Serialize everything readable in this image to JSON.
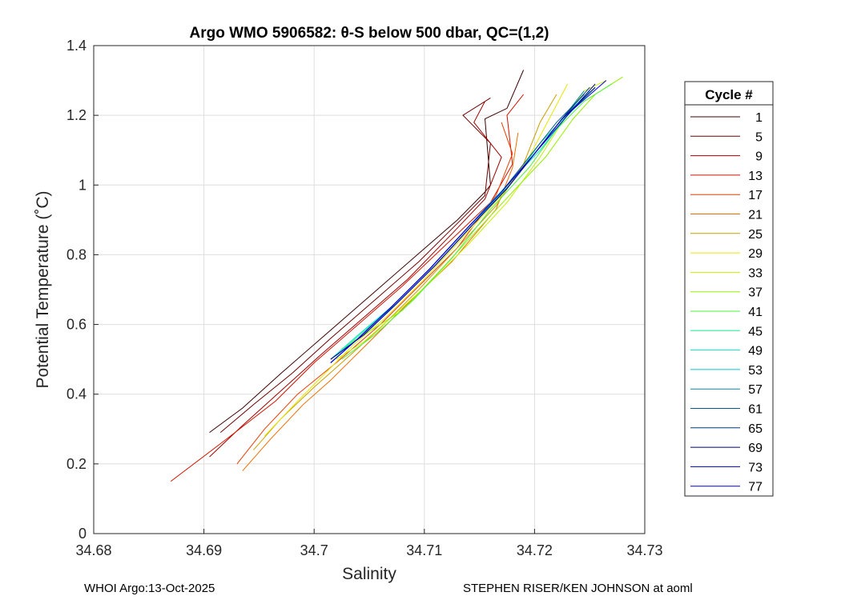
{
  "chart_data": {
    "type": "line",
    "title": "Argo WMO 5906582: θ-S below 500 dbar,  QC=(1,2)",
    "xlabel": "Salinity",
    "ylabel": "Potential Temperature (˚C)",
    "xlim": [
      34.68,
      34.73
    ],
    "ylim": [
      0,
      1.4
    ],
    "xticks": [
      34.68,
      34.69,
      34.7,
      34.71,
      34.72,
      34.73
    ],
    "xtick_labels": [
      "34.68",
      "34.69",
      "34.7",
      "34.71",
      "34.72",
      "34.73"
    ],
    "yticks": [
      0,
      0.2,
      0.4,
      0.6,
      0.8,
      1,
      1.2,
      1.4
    ],
    "ytick_labels": [
      "0",
      "0.2",
      "0.4",
      "0.6",
      "0.8",
      "1",
      "1.2",
      "1.4"
    ],
    "grid": true,
    "legend": {
      "title": "Cycle #",
      "position": "right",
      "entries": [
        {
          "label": "1",
          "color": "#3c0000"
        },
        {
          "label": "5",
          "color": "#6e0000"
        },
        {
          "label": "9",
          "color": "#a00000"
        },
        {
          "label": "13",
          "color": "#d21400"
        },
        {
          "label": "17",
          "color": "#e83c00"
        },
        {
          "label": "21",
          "color": "#f06e00"
        },
        {
          "label": "25",
          "color": "#c8a000"
        },
        {
          "label": "29",
          "color": "#e6e600"
        },
        {
          "label": "33",
          "color": "#c8f000"
        },
        {
          "label": "37",
          "color": "#96f000"
        },
        {
          "label": "41",
          "color": "#50f03c"
        },
        {
          "label": "45",
          "color": "#1ef08c"
        },
        {
          "label": "49",
          "color": "#00e6c8"
        },
        {
          "label": "53",
          "color": "#00c8dc"
        },
        {
          "label": "57",
          "color": "#008cb4"
        },
        {
          "label": "61",
          "color": "#005a96"
        },
        {
          "label": "65",
          "color": "#003c78"
        },
        {
          "label": "69",
          "color": "#00005a"
        },
        {
          "label": "73",
          "color": "#0000a0"
        },
        {
          "label": "77",
          "color": "#0000dc"
        }
      ]
    },
    "series": [
      {
        "name": "1",
        "color": "#3c0000",
        "points": [
          [
            34.6905,
            0.29
          ],
          [
            34.6935,
            0.36
          ],
          [
            34.697,
            0.46
          ],
          [
            34.701,
            0.57
          ],
          [
            34.705,
            0.68
          ],
          [
            34.709,
            0.79
          ],
          [
            34.713,
            0.9
          ],
          [
            34.7155,
            0.98
          ],
          [
            34.716,
            1.0
          ],
          [
            34.7155,
            1.19
          ],
          [
            34.7175,
            1.22
          ],
          [
            34.719,
            1.33
          ]
        ]
      },
      {
        "name": "5",
        "color": "#6e0000",
        "points": [
          [
            34.6915,
            0.29
          ],
          [
            34.6945,
            0.37
          ],
          [
            34.698,
            0.46
          ],
          [
            34.7015,
            0.56
          ],
          [
            34.7055,
            0.67
          ],
          [
            34.7095,
            0.78
          ],
          [
            34.713,
            0.89
          ],
          [
            34.7155,
            0.97
          ],
          [
            34.716,
            1.12
          ],
          [
            34.7135,
            1.2
          ],
          [
            34.716,
            1.25
          ]
        ]
      },
      {
        "name": "9",
        "color": "#a00000",
        "points": [
          [
            34.6905,
            0.22
          ],
          [
            34.6935,
            0.31
          ],
          [
            34.697,
            0.41
          ],
          [
            34.7005,
            0.51
          ],
          [
            34.7045,
            0.62
          ],
          [
            34.7085,
            0.73
          ],
          [
            34.7125,
            0.86
          ],
          [
            34.7155,
            0.96
          ],
          [
            34.717,
            1.08
          ],
          [
            34.7145,
            1.18
          ],
          [
            34.7155,
            1.24
          ]
        ]
      },
      {
        "name": "13",
        "color": "#d21400",
        "points": [
          [
            34.687,
            0.15
          ],
          [
            34.692,
            0.27
          ],
          [
            34.6965,
            0.38
          ],
          [
            34.7,
            0.49
          ],
          [
            34.704,
            0.6
          ],
          [
            34.708,
            0.71
          ],
          [
            34.712,
            0.83
          ],
          [
            34.716,
            0.95
          ],
          [
            34.718,
            1.06
          ],
          [
            34.7175,
            1.2
          ],
          [
            34.719,
            1.26
          ]
        ]
      },
      {
        "name": "17",
        "color": "#e83c00",
        "points": [
          [
            34.693,
            0.2
          ],
          [
            34.6955,
            0.3
          ],
          [
            34.6985,
            0.4
          ],
          [
            34.702,
            0.49
          ],
          [
            34.706,
            0.6
          ],
          [
            34.7095,
            0.71
          ],
          [
            34.713,
            0.82
          ],
          [
            34.7165,
            0.97
          ],
          [
            34.718,
            1.09
          ],
          [
            34.717,
            1.18
          ]
        ]
      },
      {
        "name": "21",
        "color": "#f06e00",
        "points": [
          [
            34.6935,
            0.18
          ],
          [
            34.696,
            0.27
          ],
          [
            34.699,
            0.37
          ],
          [
            34.7015,
            0.44
          ],
          [
            34.705,
            0.55
          ],
          [
            34.7085,
            0.66
          ],
          [
            34.7125,
            0.78
          ],
          [
            34.7165,
            0.93
          ],
          [
            34.718,
            1.05
          ],
          [
            34.7185,
            1.15
          ]
        ]
      },
      {
        "name": "25",
        "color": "#c8a000",
        "points": [
          [
            34.6945,
            0.24
          ],
          [
            34.697,
            0.33
          ],
          [
            34.7,
            0.42
          ],
          [
            34.7025,
            0.49
          ],
          [
            34.706,
            0.59
          ],
          [
            34.7095,
            0.7
          ],
          [
            34.713,
            0.82
          ],
          [
            34.7165,
            0.94
          ],
          [
            34.719,
            1.06
          ],
          [
            34.7205,
            1.18
          ],
          [
            34.722,
            1.26
          ]
        ]
      },
      {
        "name": "29",
        "color": "#e6e600",
        "points": [
          [
            34.6955,
            0.28
          ],
          [
            34.6985,
            0.38
          ],
          [
            34.701,
            0.46
          ],
          [
            34.7035,
            0.54
          ],
          [
            34.7065,
            0.62
          ],
          [
            34.71,
            0.73
          ],
          [
            34.7135,
            0.85
          ],
          [
            34.717,
            0.97
          ],
          [
            34.7195,
            1.08
          ],
          [
            34.7215,
            1.2
          ],
          [
            34.723,
            1.29
          ]
        ]
      },
      {
        "name": "33",
        "color": "#c8f000",
        "points": [
          [
            34.702,
            0.5
          ],
          [
            34.7045,
            0.55
          ],
          [
            34.707,
            0.62
          ],
          [
            34.7105,
            0.72
          ],
          [
            34.714,
            0.83
          ],
          [
            34.7175,
            0.95
          ],
          [
            34.7205,
            1.08
          ],
          [
            34.7225,
            1.18
          ],
          [
            34.7245,
            1.27
          ],
          [
            34.7265,
            1.3
          ]
        ]
      },
      {
        "name": "37",
        "color": "#96f000",
        "points": [
          [
            34.7025,
            0.53
          ],
          [
            34.705,
            0.58
          ],
          [
            34.708,
            0.64
          ],
          [
            34.711,
            0.74
          ],
          [
            34.7145,
            0.86
          ],
          [
            34.718,
            0.98
          ],
          [
            34.721,
            1.08
          ],
          [
            34.7235,
            1.19
          ],
          [
            34.7255,
            1.26
          ],
          [
            34.728,
            1.31
          ]
        ]
      },
      {
        "name": "41",
        "color": "#50f03c",
        "points": [
          [
            34.7025,
            0.5
          ],
          [
            34.7055,
            0.57
          ],
          [
            34.709,
            0.67
          ],
          [
            34.7125,
            0.79
          ],
          [
            34.716,
            0.93
          ],
          [
            34.7195,
            1.05
          ],
          [
            34.722,
            1.16
          ],
          [
            34.7245,
            1.24
          ],
          [
            34.727,
            1.29
          ]
        ]
      },
      {
        "name": "45",
        "color": "#1ef08c",
        "points": [
          [
            34.702,
            0.51
          ],
          [
            34.7045,
            0.58
          ],
          [
            34.7075,
            0.66
          ],
          [
            34.711,
            0.77
          ],
          [
            34.7145,
            0.89
          ],
          [
            34.718,
            1.01
          ],
          [
            34.7205,
            1.12
          ],
          [
            34.7235,
            1.22
          ],
          [
            34.7255,
            1.28
          ]
        ]
      },
      {
        "name": "49",
        "color": "#00e6c8",
        "points": [
          [
            34.7015,
            0.5
          ],
          [
            34.704,
            0.57
          ],
          [
            34.707,
            0.65
          ],
          [
            34.7105,
            0.76
          ],
          [
            34.714,
            0.88
          ],
          [
            34.7175,
            1.0
          ],
          [
            34.7205,
            1.1
          ],
          [
            34.723,
            1.2
          ],
          [
            34.7255,
            1.28
          ]
        ]
      },
      {
        "name": "53",
        "color": "#00c8dc",
        "points": [
          [
            34.7015,
            0.49
          ],
          [
            34.704,
            0.56
          ],
          [
            34.707,
            0.65
          ],
          [
            34.7105,
            0.76
          ],
          [
            34.714,
            0.88
          ],
          [
            34.7175,
            0.99
          ],
          [
            34.72,
            1.09
          ],
          [
            34.7225,
            1.19
          ],
          [
            34.725,
            1.27
          ]
        ]
      },
      {
        "name": "57",
        "color": "#008cb4",
        "points": [
          [
            34.7015,
            0.5
          ],
          [
            34.7045,
            0.57
          ],
          [
            34.7075,
            0.66
          ],
          [
            34.711,
            0.77
          ],
          [
            34.7145,
            0.89
          ],
          [
            34.7175,
            0.99
          ],
          [
            34.72,
            1.09
          ],
          [
            34.7225,
            1.19
          ],
          [
            34.7245,
            1.27
          ]
        ]
      },
      {
        "name": "61",
        "color": "#005a96",
        "points": [
          [
            34.7015,
            0.49
          ],
          [
            34.704,
            0.56
          ],
          [
            34.707,
            0.65
          ],
          [
            34.7105,
            0.76
          ],
          [
            34.714,
            0.88
          ],
          [
            34.717,
            0.98
          ],
          [
            34.7195,
            1.08
          ],
          [
            34.722,
            1.18
          ],
          [
            34.7245,
            1.26
          ]
        ]
      },
      {
        "name": "65",
        "color": "#003c78",
        "points": [
          [
            34.7015,
            0.5
          ],
          [
            34.7045,
            0.57
          ],
          [
            34.7075,
            0.66
          ],
          [
            34.711,
            0.77
          ],
          [
            34.7145,
            0.89
          ],
          [
            34.7175,
            0.99
          ],
          [
            34.72,
            1.09
          ],
          [
            34.7225,
            1.19
          ],
          [
            34.725,
            1.28
          ]
        ]
      },
      {
        "name": "69",
        "color": "#00005a",
        "points": [
          [
            34.7015,
            0.49
          ],
          [
            34.704,
            0.56
          ],
          [
            34.707,
            0.65
          ],
          [
            34.7105,
            0.76
          ],
          [
            34.714,
            0.88
          ],
          [
            34.717,
            0.98
          ],
          [
            34.72,
            1.09
          ],
          [
            34.7225,
            1.19
          ],
          [
            34.7255,
            1.28
          ]
        ]
      },
      {
        "name": "73",
        "color": "#0000a0",
        "points": [
          [
            34.7015,
            0.5
          ],
          [
            34.7045,
            0.57
          ],
          [
            34.7075,
            0.66
          ],
          [
            34.711,
            0.77
          ],
          [
            34.7145,
            0.89
          ],
          [
            34.7175,
            0.99
          ],
          [
            34.72,
            1.09
          ],
          [
            34.723,
            1.2
          ],
          [
            34.7255,
            1.29
          ]
        ]
      },
      {
        "name": "77",
        "color": "#0000dc",
        "points": [
          [
            34.7015,
            0.49
          ],
          [
            34.704,
            0.56
          ],
          [
            34.707,
            0.65
          ],
          [
            34.7105,
            0.76
          ],
          [
            34.714,
            0.88
          ],
          [
            34.717,
            0.98
          ],
          [
            34.72,
            1.09
          ],
          [
            34.7225,
            1.19
          ],
          [
            34.7265,
            1.3
          ]
        ]
      }
    ]
  },
  "footer": {
    "left": "WHOI Argo:13-Oct-2025",
    "right": "STEPHEN RISER/KEN JOHNSON at aoml"
  }
}
